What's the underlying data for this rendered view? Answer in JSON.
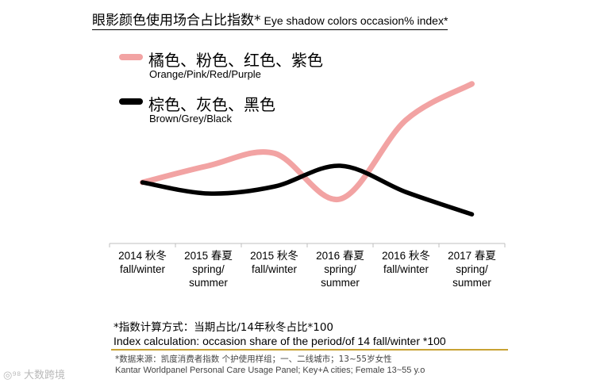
{
  "chart_data": {
    "type": "line",
    "title": "眼影颜色使用场合占比指数*",
    "title_en": "Eye shadow colors occasion% index*",
    "categories": [
      [
        "2014 秋冬",
        "fall/winter"
      ],
      [
        "2015 春夏",
        "spring/",
        "summer"
      ],
      [
        "2015 秋冬",
        "fall/winter"
      ],
      [
        "2016 春夏",
        "spring/",
        "summer"
      ],
      [
        "2016 秋冬",
        "fall/winter"
      ],
      [
        "2017 春夏",
        "spring/",
        "summer"
      ]
    ],
    "series": [
      {
        "name": "橘色、粉色、红色、紫色",
        "name_en": "Orange/Pink/Red/Purple",
        "color": "#f2a3a3",
        "values": [
          100,
          112,
          121,
          88,
          145,
          171
        ]
      },
      {
        "name": "棕色、灰色、黑色",
        "name_en": "Brown/Grey/Black",
        "color": "#000000",
        "values": [
          100,
          92,
          97,
          112,
          93,
          77
        ]
      }
    ],
    "ylim": [
      60,
      180
    ],
    "grid": false,
    "legend_position": "top-left"
  },
  "notes": {
    "index_cn": "*指数计算方式：当期占比/14年秋冬占比*100",
    "index_en": "Index calculation: occasion share of the period/of 14 fall/winter *100"
  },
  "source": {
    "cn": "*数据来源：凯度消费者指数 个护使用样组；一、二线城市；13~55岁女性",
    "en": "Kantar Worldpanel Personal Care Usage Panel; Key+A cities; Female 13~55 y.o"
  },
  "watermark": "大数跨境"
}
